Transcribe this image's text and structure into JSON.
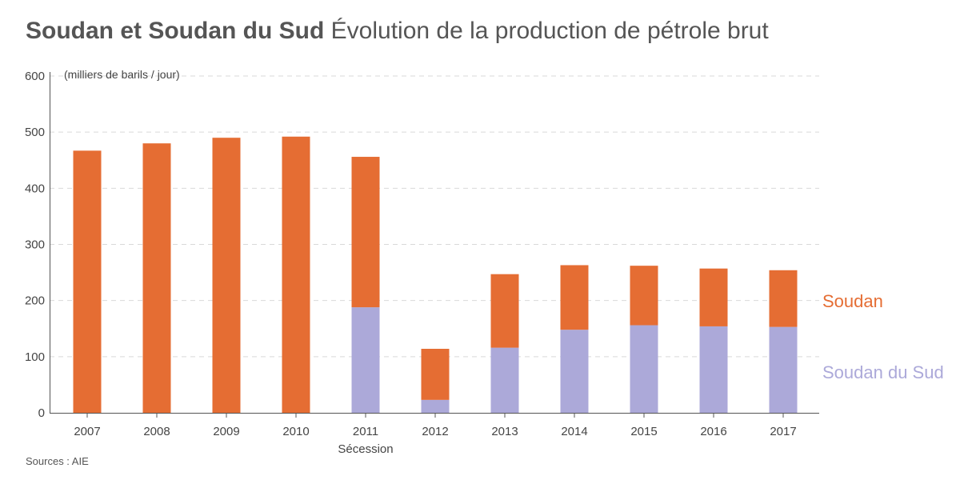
{
  "header": {
    "title_bold": "Soudan et Soudan du Sud",
    "title_light": "Évolution de la production de pétrole brut"
  },
  "footer": {
    "source": "Sources : AIE"
  },
  "chart_data": {
    "type": "bar",
    "stacked": true,
    "title": "Soudan et Soudan du Sud Évolution de la production de pétrole brut",
    "ylabel": "(milliers de barils / jour)",
    "xlabel": "",
    "ylim": [
      0,
      600
    ],
    "yticks": [
      0,
      100,
      200,
      300,
      400,
      500,
      600
    ],
    "grid": true,
    "categories": [
      "2007",
      "2008",
      "2009",
      "2010",
      "2011",
      "2012",
      "2013",
      "2014",
      "2015",
      "2016",
      "2017"
    ],
    "series": [
      {
        "name": "Soudan du Sud",
        "color": "#aca9d9",
        "values": [
          0,
          0,
          0,
          0,
          188,
          23,
          116,
          148,
          156,
          154,
          153
        ]
      },
      {
        "name": "Soudan",
        "color": "#e56d33",
        "values": [
          467,
          480,
          490,
          492,
          268,
          91,
          131,
          115,
          106,
          103,
          101
        ]
      }
    ],
    "annotations": [
      {
        "text": "Sécession",
        "category": "2011"
      }
    ]
  }
}
